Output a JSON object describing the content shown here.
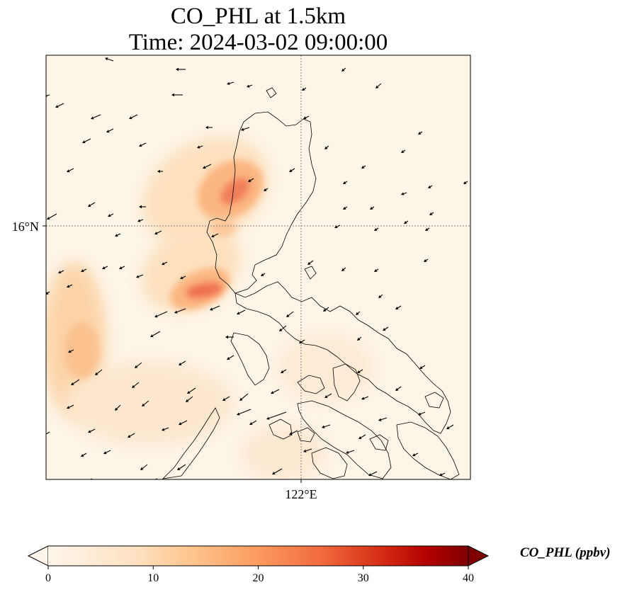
{
  "map": {
    "title_line1": "CO_PHL at 1.5km",
    "title_line2": "Time: 2024-03-02 09:00:00",
    "lat_label": "16°N",
    "lon_label": "122°E",
    "gridline_color": "#7f7f7f",
    "background_color": "#fdf5e8",
    "arrow_direction": "southwest"
  },
  "colorbar": {
    "title": "CO_PHL (ppbv)",
    "ticks": [
      "0",
      "10",
      "20",
      "30",
      "40"
    ],
    "colors": [
      "#fff5eb",
      "#fdd9ac",
      "#fdae6b",
      "#f16a3f",
      "#c7180f",
      "#7f0000"
    ],
    "extend": "both"
  }
}
